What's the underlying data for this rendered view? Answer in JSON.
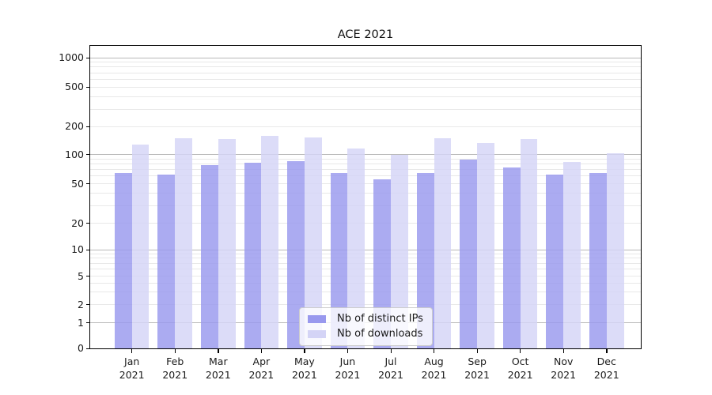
{
  "chart_data": {
    "type": "bar",
    "title": "ACE 2021",
    "categories": [
      "Jan",
      "Feb",
      "Mar",
      "Apr",
      "May",
      "Jun",
      "Jul",
      "Aug",
      "Sep",
      "Oct",
      "Nov",
      "Dec"
    ],
    "category_year": "2021",
    "series": [
      {
        "name": "Nb of distinct IPs",
        "color": "#9999ee",
        "values": [
          65,
          62,
          78,
          82,
          86,
          65,
          56,
          64,
          88,
          73,
          62,
          65
        ]
      },
      {
        "name": "Nb of downloads",
        "color": "#d4d4f6",
        "values": [
          128,
          150,
          147,
          160,
          152,
          116,
          100,
          149,
          133,
          146,
          84,
          104
        ]
      }
    ],
    "y_axis": {
      "scale": "symlog",
      "tick_values": [
        0,
        1,
        2,
        5,
        10,
        20,
        50,
        100,
        200,
        500,
        1000
      ],
      "tick_labels": [
        "0",
        "1",
        "2",
        "5",
        "10",
        "20",
        "50",
        "100",
        "200",
        "500",
        "1000"
      ],
      "major_gridlines": [
        1,
        10,
        100,
        1000
      ],
      "minor_gridlines": [
        2,
        3,
        4,
        5,
        6,
        7,
        8,
        9,
        20,
        30,
        40,
        50,
        60,
        70,
        80,
        90,
        200,
        300,
        400,
        500,
        600,
        700,
        800,
        900
      ],
      "range_top": 1360
    },
    "x_axis": {
      "label_lines": 2
    },
    "legend": {
      "position": "lower center"
    },
    "colors": {
      "major_grid": "#b8b8b8",
      "minor_grid": "#e8e8e8",
      "axis": "#000000",
      "text": "#1a1a1a",
      "legend_border": "#cccccc"
    }
  }
}
